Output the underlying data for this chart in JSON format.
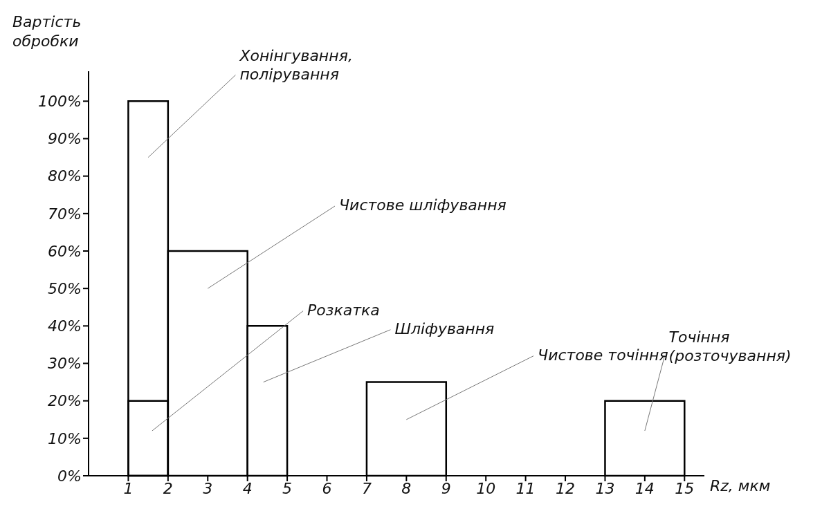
{
  "chart_data": {
    "type": "histogram",
    "xlabel": "Rz, мкм",
    "ylabel": "Вартість\nобробки",
    "bins": [
      1,
      2,
      4,
      5,
      7,
      9,
      13,
      15
    ],
    "series": [
      {
        "color": "#000000",
        "values": [
          100,
          60,
          40,
          0,
          25,
          0,
          20
        ]
      },
      {
        "color": "#000000",
        "values": [
          20,
          null,
          null,
          null,
          null,
          null,
          null
        ]
      }
    ],
    "xlim": [
      0,
      15.5
    ],
    "xticks": [
      1,
      2,
      3,
      4,
      5,
      6,
      7,
      8,
      9,
      10,
      11,
      12,
      13,
      14,
      15
    ],
    "ylim": [
      0,
      108
    ],
    "yticks": [
      {
        "value": 0,
        "label": "0%"
      },
      {
        "value": 10,
        "label": "10%"
      },
      {
        "value": 20,
        "label": "20%"
      },
      {
        "value": 30,
        "label": "30%"
      },
      {
        "value": 40,
        "label": "40%"
      },
      {
        "value": 50,
        "label": "50%"
      },
      {
        "value": 60,
        "label": "60%"
      },
      {
        "value": 70,
        "label": "70%"
      },
      {
        "value": 80,
        "label": "80%"
      },
      {
        "value": 90,
        "label": "90%"
      },
      {
        "value": 100,
        "label": "100%"
      }
    ],
    "grid": false,
    "annotations": [
      "Хонінгування,\nполірування",
      "Чистове шліфування",
      "Розкатка",
      "Шліфування",
      "Чистове точіння",
      "Точіння\n(розточування)"
    ]
  }
}
